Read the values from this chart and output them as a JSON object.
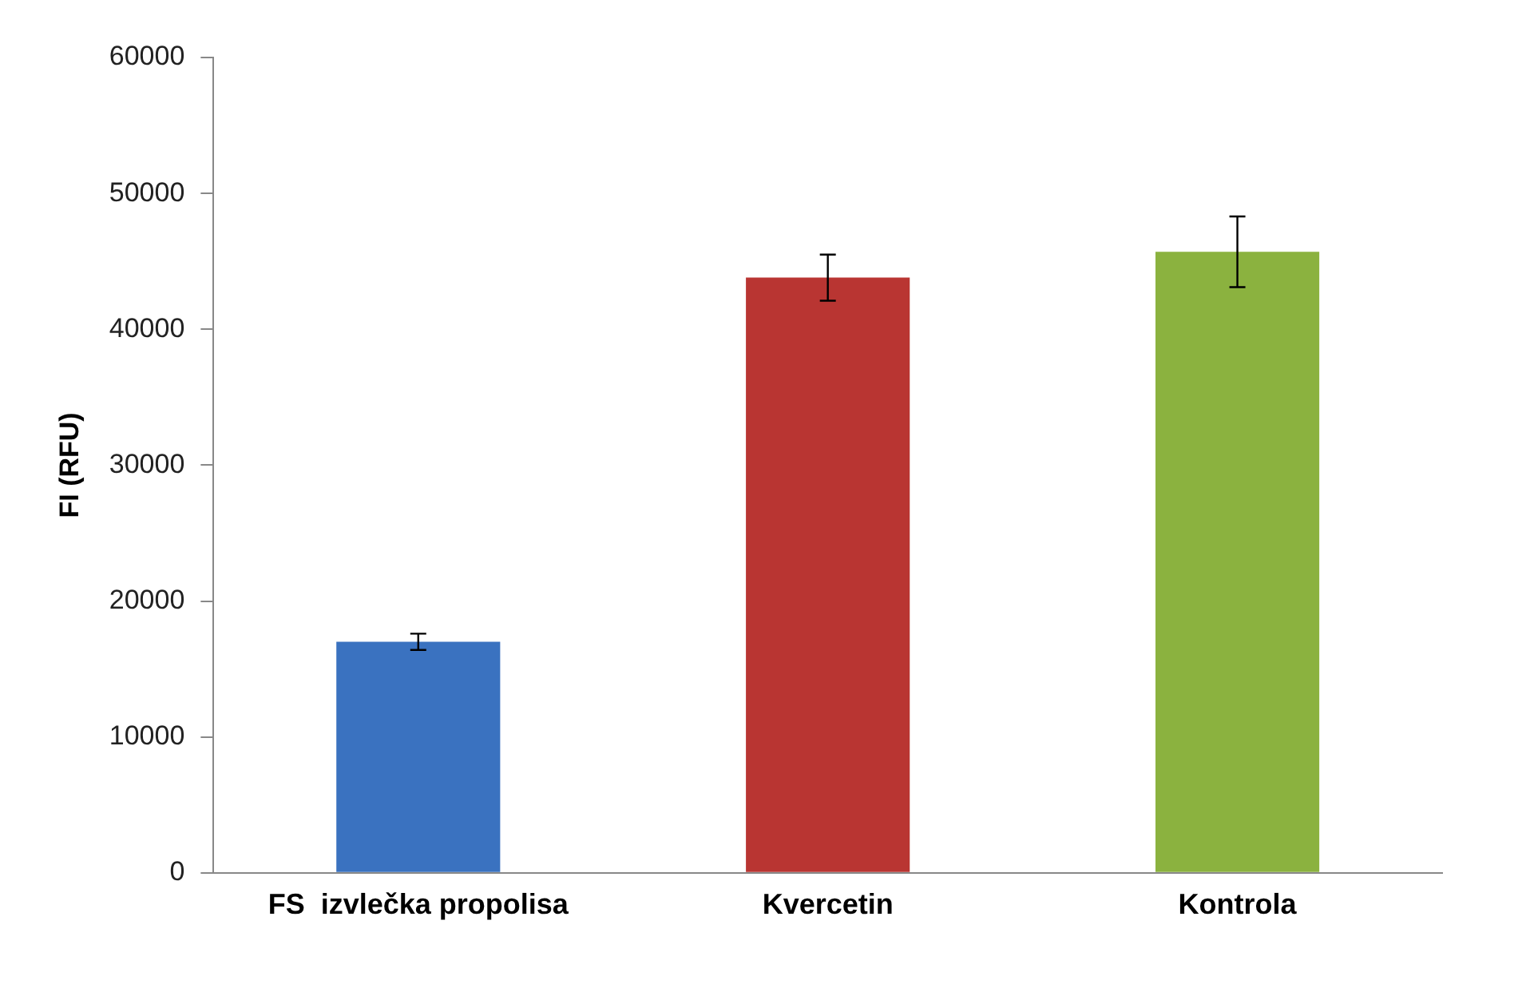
{
  "chart_data": {
    "type": "bar",
    "ylabel": "FI (RFU)",
    "categories": [
      "FS  izvlečka propolisa",
      "Kvercetin",
      "Kontrola"
    ],
    "values": [
      17000,
      43800,
      45700
    ],
    "colors": [
      "#3a72c0",
      "#b93532",
      "#8bb23f"
    ],
    "errors": [
      600,
      1700,
      2600
    ],
    "ylim": [
      0,
      60000
    ],
    "yticks": [
      0,
      10000,
      20000,
      30000,
      40000,
      50000,
      60000
    ],
    "grid": false,
    "legend": false
  }
}
